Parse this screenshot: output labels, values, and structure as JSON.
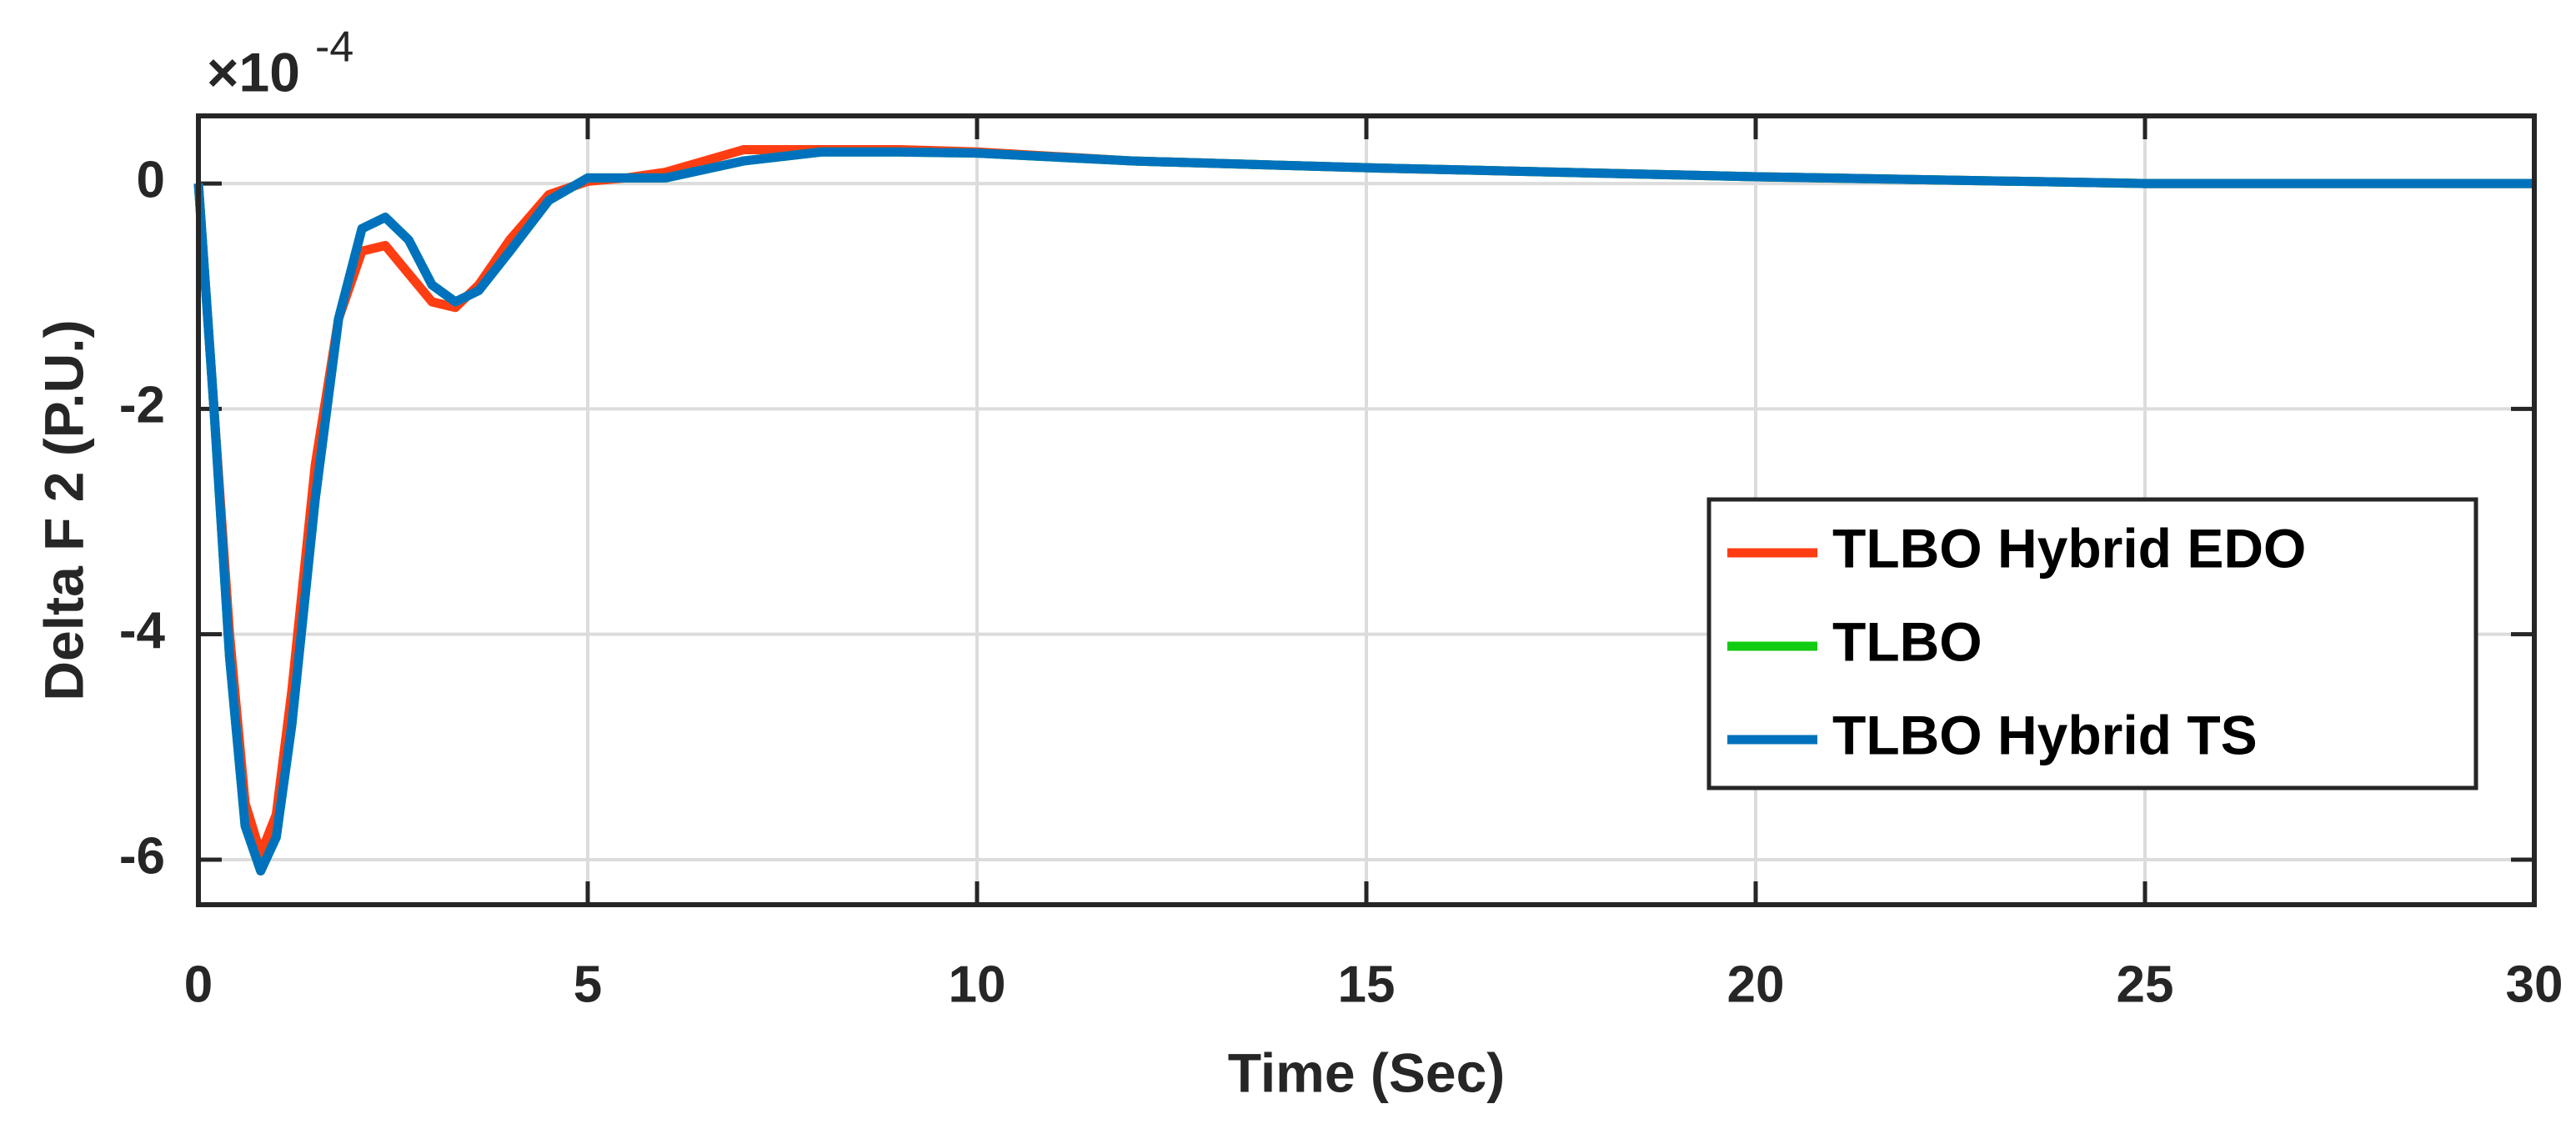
{
  "chart_data": {
    "type": "line",
    "x_label": "Time (Sec)",
    "y_label": "Delta F 2 (P.U.)",
    "y_multiplier": "×10",
    "y_multiplier_exponent": "-4",
    "x": [
      0,
      0.2,
      0.4,
      0.6,
      0.8,
      1.0,
      1.2,
      1.5,
      1.8,
      2.1,
      2.4,
      2.7,
      3.0,
      3.3,
      3.6,
      4.0,
      4.5,
      5.0,
      5.5,
      6.0,
      7,
      8,
      9,
      10,
      12,
      15,
      20,
      25,
      30
    ],
    "series": [
      {
        "name": "TLBO Hybrid EDO",
        "color": "#ff3d12",
        "values": [
          0,
          -2,
          -4,
          -5.5,
          -5.95,
          -5.6,
          -4.5,
          -2.5,
          -1.2,
          -0.6,
          -0.55,
          -0.8,
          -1.05,
          -1.1,
          -0.9,
          -0.5,
          -0.1,
          0.02,
          0.05,
          0.1,
          0.3,
          0.3,
          0.3,
          0.28,
          0.2,
          0.14,
          0.06,
          0.0,
          0
        ]
      },
      {
        "name": "TLBO",
        "color": "#11cc11",
        "values": [
          0,
          -2,
          -4.2,
          -5.7,
          -6.1,
          -5.8,
          -4.8,
          -2.8,
          -1.2,
          -0.4,
          -0.3,
          -0.5,
          -0.9,
          -1.05,
          -0.95,
          -0.6,
          -0.15,
          0.05,
          0.05,
          0.05,
          0.2,
          0.28,
          0.28,
          0.27,
          0.2,
          0.14,
          0.06,
          0.0,
          0
        ]
      },
      {
        "name": "TLBO Hybrid TS",
        "color": "#0072bd",
        "values": [
          0,
          -2,
          -4.2,
          -5.7,
          -6.1,
          -5.8,
          -4.8,
          -2.8,
          -1.2,
          -0.4,
          -0.3,
          -0.5,
          -0.9,
          -1.05,
          -0.95,
          -0.6,
          -0.15,
          0.05,
          0.05,
          0.05,
          0.2,
          0.28,
          0.28,
          0.27,
          0.2,
          0.14,
          0.06,
          0.0,
          0
        ]
      }
    ],
    "xlim": [
      0,
      30
    ],
    "xticks": [
      0,
      5,
      10,
      15,
      20,
      25,
      30
    ],
    "ylim": [
      -6.4,
      0.6
    ],
    "yticks": [
      -6,
      -4,
      -2,
      0
    ],
    "grid": true,
    "legend": "east"
  }
}
